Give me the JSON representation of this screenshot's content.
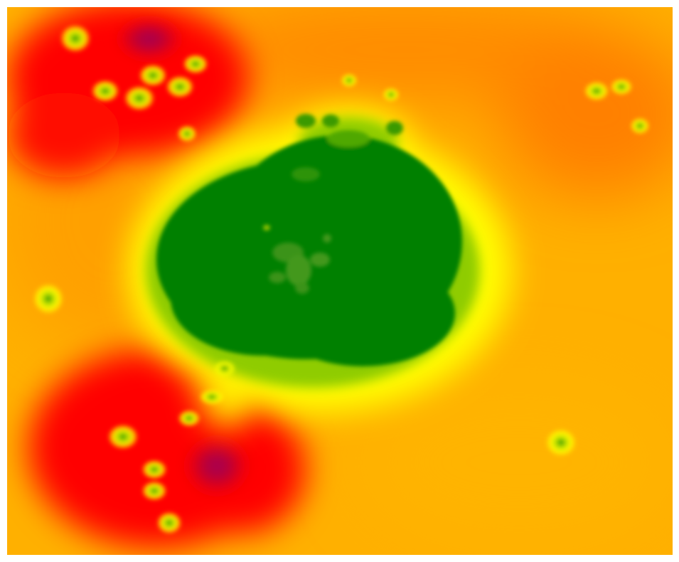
{
  "map": {
    "type": "heatmap",
    "colors": {
      "background": "#ffb000",
      "low": "#008000",
      "low_mid": "#7fbf00",
      "mid": "#ffff00",
      "mid_high": "#ffa500",
      "high": "#ff0000",
      "peak": "#a0005a"
    },
    "color_scale": [
      "#008000",
      "#7fbf00",
      "#ffff00",
      "#ffc000",
      "#ff7f00",
      "#ff0000",
      "#a0005a"
    ]
  }
}
